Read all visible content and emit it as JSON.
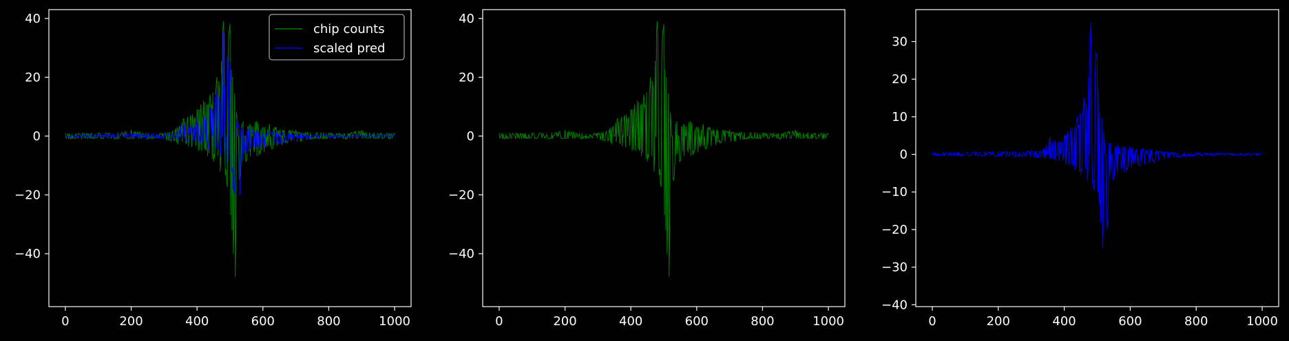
{
  "figure": {
    "background": "#000000",
    "foreground": "#ffffff"
  },
  "chart_data": [
    {
      "type": "line",
      "title": "",
      "xlabel": "",
      "ylabel": "",
      "xlim": [
        -50,
        1050
      ],
      "ylim": [
        -58,
        43
      ],
      "xticks": [
        0,
        200,
        400,
        600,
        800,
        1000
      ],
      "xtick_labels": [
        "0",
        "200",
        "400",
        "600",
        "800",
        "1000"
      ],
      "yticks": [
        -40,
        -20,
        0,
        20,
        40
      ],
      "ytick_labels": [
        "−40",
        "−20",
        "0",
        "20",
        "40"
      ],
      "grid": false,
      "legend": {
        "placement": "upper right",
        "entries": [
          {
            "label": "chip counts",
            "color": "#008000"
          },
          {
            "label": "scaled pred",
            "color": "#0000ff"
          }
        ]
      },
      "series": [
        {
          "name": "chip counts",
          "color": "#008000",
          "x": [
            0,
            50,
            100,
            150,
            200,
            250,
            300,
            340,
            360,
            380,
            400,
            420,
            440,
            460,
            470,
            480,
            490,
            500,
            505,
            510,
            515,
            520,
            525,
            530,
            540,
            560,
            580,
            600,
            620,
            640,
            660,
            680,
            700,
            720,
            750,
            800,
            850,
            900,
            950,
            1000
          ],
          "y_upper": [
            1,
            1,
            1,
            1,
            2,
            1,
            1,
            3,
            6,
            7,
            9,
            12,
            14,
            20,
            24,
            39,
            30,
            38,
            22,
            32,
            12,
            8,
            6,
            4,
            5,
            4,
            5,
            3,
            4,
            3,
            2,
            2,
            2,
            1,
            2,
            1,
            1,
            2,
            1,
            1
          ],
          "y_lower": [
            -1,
            -1,
            -1,
            -1,
            -1,
            -1,
            -1,
            -3,
            -3,
            -4,
            -5,
            -6,
            -8,
            -10,
            -12,
            -14,
            -16,
            -28,
            -30,
            -40,
            -54,
            -45,
            -30,
            -15,
            -10,
            -8,
            -7,
            -6,
            -5,
            -4,
            -3,
            -2,
            -2,
            -2,
            -1,
            -1,
            -1,
            -1,
            -1,
            -1
          ]
        },
        {
          "name": "scaled pred",
          "color": "#0000ff",
          "x": [
            0,
            50,
            100,
            150,
            200,
            250,
            300,
            340,
            355,
            380,
            400,
            420,
            440,
            460,
            470,
            480,
            485,
            490,
            500,
            505,
            510,
            515,
            520,
            525,
            530,
            540,
            560,
            580,
            600,
            620,
            640,
            660,
            680,
            700,
            720,
            750,
            800,
            850,
            900,
            950,
            1000
          ],
          "y_upper": [
            0.5,
            0.5,
            0.5,
            0.8,
            0.8,
            0.8,
            1,
            1.5,
            5,
            3,
            5,
            7,
            10,
            15,
            17,
            35,
            20,
            31,
            25,
            18,
            14,
            10,
            6,
            4,
            3,
            3,
            2.5,
            2,
            2,
            1.5,
            1.5,
            1.2,
            1,
            0.8,
            0.6,
            0.5,
            0.4,
            0.4,
            0.3,
            0.3,
            0.3
          ],
          "y_lower": [
            -0.3,
            -0.4,
            -0.5,
            -0.5,
            -0.6,
            -0.7,
            -0.9,
            -1.2,
            -1.5,
            -2,
            -2.5,
            -3.5,
            -5,
            -6,
            -7,
            -8,
            -9,
            -9.5,
            -10,
            -12,
            -18,
            -25,
            -37,
            -30,
            -20,
            -8,
            -6,
            -5,
            -4,
            -3.5,
            -3,
            -2.5,
            -2,
            -1.5,
            -1,
            -0.8,
            -0.5,
            -0.4,
            -0.3,
            -0.3,
            -0.3
          ]
        }
      ]
    },
    {
      "type": "line",
      "title": "",
      "xlabel": "",
      "ylabel": "",
      "xlim": [
        -50,
        1050
      ],
      "ylim": [
        -58,
        43
      ],
      "xticks": [
        0,
        200,
        400,
        600,
        800,
        1000
      ],
      "xtick_labels": [
        "0",
        "200",
        "400",
        "600",
        "800",
        "1000"
      ],
      "yticks": [
        -40,
        -20,
        0,
        20,
        40
      ],
      "ytick_labels": [
        "−40",
        "−20",
        "0",
        "20",
        "40"
      ],
      "grid": false,
      "series": [
        {
          "color": "#008000",
          "x": [
            0,
            50,
            100,
            150,
            200,
            250,
            300,
            340,
            360,
            380,
            400,
            420,
            440,
            460,
            470,
            480,
            490,
            500,
            505,
            510,
            515,
            520,
            525,
            530,
            540,
            560,
            580,
            600,
            620,
            640,
            660,
            680,
            700,
            720,
            750,
            800,
            850,
            900,
            950,
            1000
          ],
          "y_upper": [
            1,
            1,
            1,
            1,
            2,
            1,
            1,
            3,
            6,
            7,
            9,
            12,
            14,
            20,
            24,
            39,
            30,
            38,
            22,
            32,
            12,
            8,
            6,
            4,
            5,
            4,
            5,
            3,
            4,
            3,
            2,
            2,
            2,
            1,
            2,
            1,
            1,
            2,
            1,
            1
          ],
          "y_lower": [
            -1,
            -1,
            -1,
            -1,
            -1,
            -1,
            -1,
            -3,
            -3,
            -4,
            -5,
            -6,
            -8,
            -10,
            -12,
            -14,
            -16,
            -28,
            -30,
            -40,
            -54,
            -45,
            -30,
            -15,
            -10,
            -8,
            -7,
            -6,
            -5,
            -4,
            -3,
            -2,
            -2,
            -2,
            -1,
            -1,
            -1,
            -1,
            -1,
            -1
          ]
        }
      ]
    },
    {
      "type": "line",
      "title": "",
      "xlabel": "",
      "ylabel": "",
      "xlim": [
        -50,
        1050
      ],
      "ylim": [
        -40.5,
        38.5
      ],
      "xticks": [
        0,
        200,
        400,
        600,
        800,
        1000
      ],
      "xtick_labels": [
        "0",
        "200",
        "400",
        "600",
        "800",
        "1000"
      ],
      "yticks": [
        -40,
        -30,
        -20,
        -10,
        0,
        10,
        20,
        30
      ],
      "ytick_labels": [
        "−40",
        "−30",
        "−20",
        "−10",
        "0",
        "10",
        "20",
        "30"
      ],
      "grid": false,
      "series": [
        {
          "color": "#0000ff",
          "x": [
            0,
            50,
            100,
            150,
            200,
            250,
            300,
            340,
            355,
            380,
            400,
            420,
            440,
            460,
            470,
            480,
            485,
            490,
            500,
            505,
            510,
            515,
            520,
            525,
            530,
            540,
            560,
            580,
            600,
            620,
            640,
            660,
            680,
            700,
            720,
            750,
            800,
            850,
            900,
            950,
            1000
          ],
          "y_upper": [
            0.5,
            0.5,
            0.5,
            0.8,
            0.8,
            0.8,
            1,
            1.5,
            5,
            3,
            5,
            7,
            10,
            15,
            17,
            35,
            20,
            31,
            25,
            18,
            14,
            10,
            6,
            4,
            3,
            3,
            2.5,
            2,
            2,
            1.5,
            1.5,
            1.2,
            1,
            0.8,
            0.6,
            0.5,
            0.4,
            0.4,
            0.3,
            0.3,
            0.3
          ],
          "y_lower": [
            -0.3,
            -0.4,
            -0.5,
            -0.5,
            -0.6,
            -0.7,
            -0.9,
            -1.2,
            -1.5,
            -2,
            -2.5,
            -3.5,
            -5,
            -6,
            -7,
            -8,
            -9,
            -9.5,
            -10,
            -12,
            -18,
            -25,
            -37,
            -30,
            -20,
            -8,
            -6,
            -5,
            -4,
            -3.5,
            -3,
            -2.5,
            -2,
            -1.5,
            -1,
            -0.8,
            -0.5,
            -0.4,
            -0.3,
            -0.3,
            -0.3
          ]
        }
      ]
    }
  ]
}
